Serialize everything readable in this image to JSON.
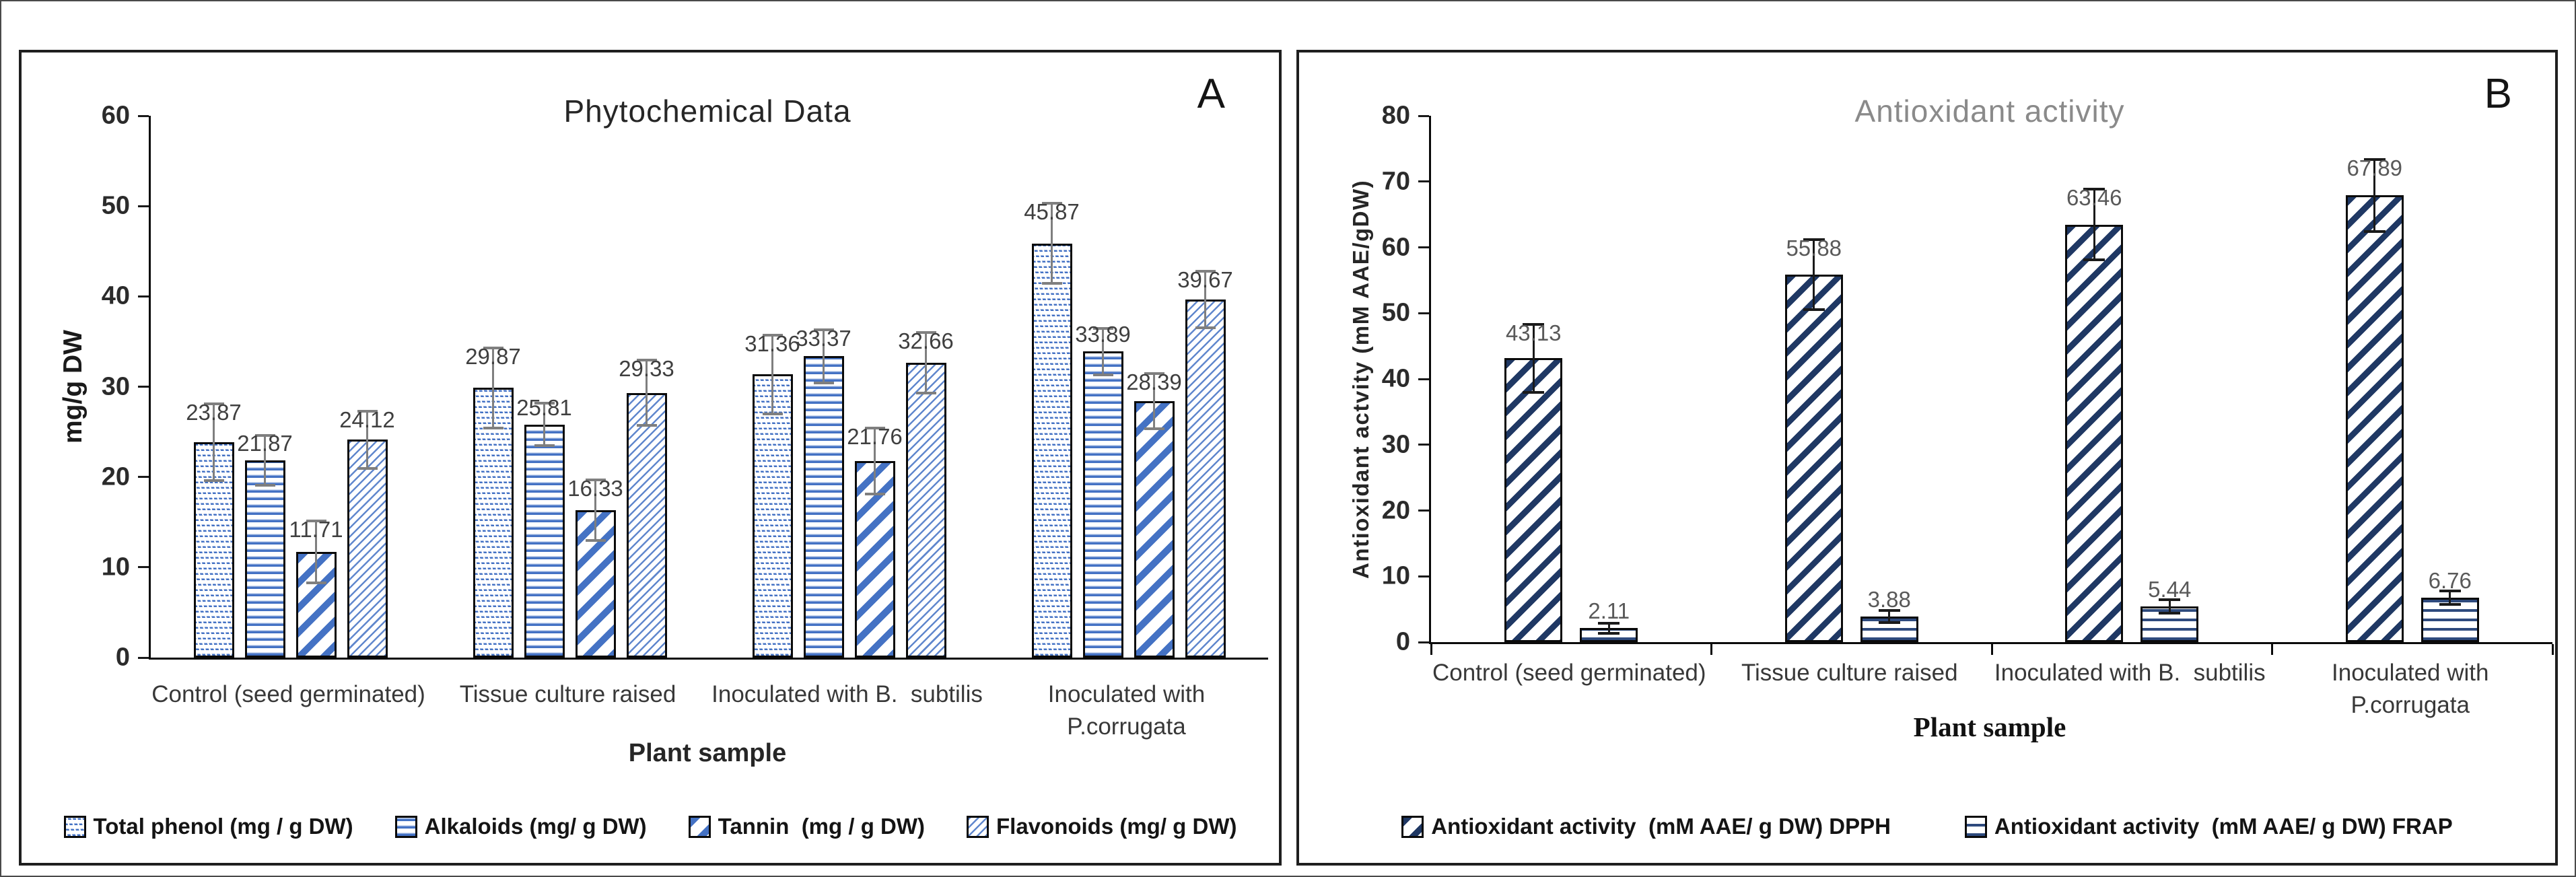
{
  "figure": {
    "panels": [
      {
        "corner_label": "A",
        "title": "Phytochemical Data",
        "y_axis": {
          "label": "mg/g DW",
          "min": 0,
          "max": 60,
          "step": 10
        },
        "x_axis_label": "Plant sample",
        "chart_data": {
          "type": "bar",
          "categories": [
            "Control (seed germinated)",
            "Tissue culture raised",
            "Inoculated with B.  subtilis",
            "Inoculated with\nP.corrugata"
          ],
          "series": [
            {
              "name": "Total phenol (mg / g DW)",
              "pattern": "wave",
              "values": [
                23.87,
                29.87,
                31.36,
                45.87
              ],
              "errors": [
                4.4,
                4.6,
                4.5,
                4.6
              ]
            },
            {
              "name": "Alkaloids (mg/ g DW)",
              "pattern": "hlines",
              "values": [
                21.87,
                25.81,
                33.37,
                33.89
              ],
              "errors": [
                2.9,
                2.5,
                3.1,
                2.7
              ]
            },
            {
              "name": "Tannin  (mg / g DW)",
              "pattern": "diag-thick",
              "values": [
                11.71,
                16.33,
                21.76,
                28.39
              ],
              "errors": [
                3.6,
                3.5,
                3.8,
                3.2
              ]
            },
            {
              "name": "Flavonoids (mg/ g DW)",
              "pattern": "diag-thin",
              "values": [
                24.12,
                29.33,
                32.66,
                39.67
              ],
              "errors": [
                3.3,
                3.8,
                3.5,
                3.3
              ]
            }
          ],
          "ylim": [
            0,
            60
          ],
          "value_label_decimals": 2,
          "grid": false,
          "legend_position": "bottom",
          "accent_color": "#4472c4",
          "error_bar_color": "#7f7f7f"
        }
      },
      {
        "corner_label": "B",
        "title": "Antioxidant activity",
        "y_axis": {
          "label": "Antioxidant actvity (mM AAE/gDW)",
          "min": 0,
          "max": 80,
          "step": 10
        },
        "x_axis_label": "Plant sample",
        "chart_data": {
          "type": "bar",
          "categories": [
            "Control (seed germinated)",
            "Tissue culture raised",
            "Inoculated with B.  subtilis",
            "Inoculated with\nP.corrugata"
          ],
          "series": [
            {
              "name": "Antioxidant activity  (mM AAE/ g DW) DPPH",
              "pattern": "diag-navy",
              "values": [
                43.13,
                55.88,
                63.46,
                67.89
              ],
              "errors": [
                5.4,
                5.5,
                5.6,
                5.7
              ]
            },
            {
              "name": "Antioxidant activity  (mM AAE/ g DW) FRAP",
              "pattern": "hlines-navy",
              "values": [
                2.11,
                3.88,
                5.44,
                6.76
              ],
              "errors": [
                1.0,
                1.1,
                1.2,
                1.2
              ]
            }
          ],
          "ylim": [
            0,
            80
          ],
          "value_label_decimals": 2,
          "grid": false,
          "legend_position": "bottom",
          "accent_color": "#1f3864",
          "error_bar_color": "#1a1a1a"
        }
      }
    ],
    "colors": {
      "panel_a_accent": "#4472c4",
      "panel_b_accent": "#1f3864",
      "title_a": "#262626",
      "title_b": "#8a8a8a",
      "error_bar_a": "#7f7f7f",
      "error_bar_b": "#1a1a1a"
    }
  }
}
